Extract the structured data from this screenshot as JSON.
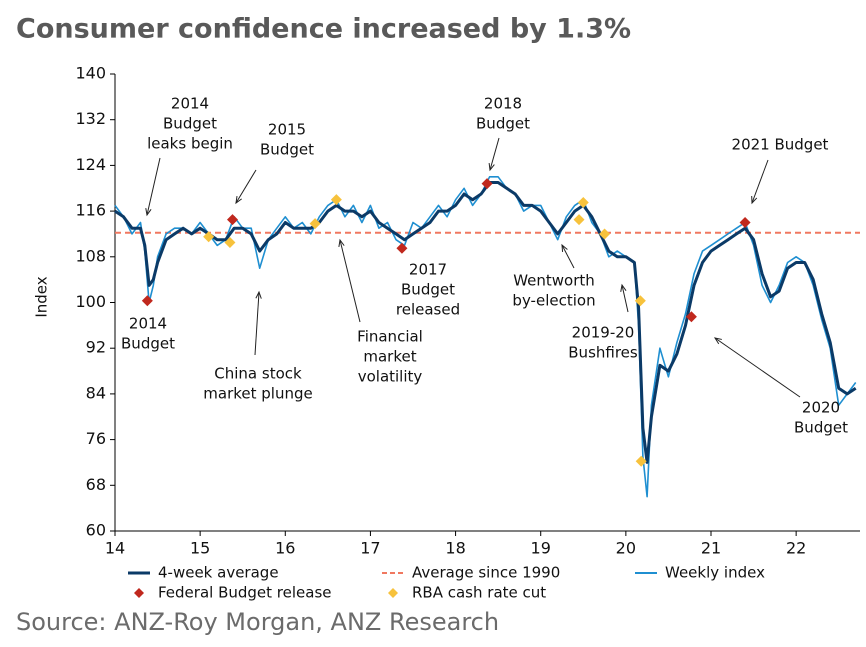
{
  "chart_data": {
    "type": "line",
    "title": "Consumer confidence increased by 1.3%",
    "source": "Source: ANZ-Roy Morgan, ANZ Research",
    "y_label": "Index",
    "xlim": [
      14,
      22.75
    ],
    "xticks": [
      14,
      15,
      16,
      17,
      18,
      19,
      20,
      21,
      22
    ],
    "ylim": [
      60,
      140
    ],
    "yticks": [
      60,
      68,
      76,
      84,
      92,
      100,
      108,
      116,
      124,
      132,
      140
    ],
    "x": [
      14.0,
      14.1,
      14.2,
      14.3,
      14.35,
      14.4,
      14.45,
      14.5,
      14.6,
      14.7,
      14.8,
      14.9,
      15.0,
      15.1,
      15.2,
      15.3,
      15.4,
      15.5,
      15.6,
      15.7,
      15.8,
      15.9,
      16.0,
      16.1,
      16.2,
      16.3,
      16.4,
      16.5,
      16.6,
      16.7,
      16.8,
      16.9,
      17.0,
      17.1,
      17.2,
      17.3,
      17.4,
      17.5,
      17.6,
      17.7,
      17.8,
      17.9,
      18.0,
      18.1,
      18.2,
      18.3,
      18.4,
      18.5,
      18.6,
      18.7,
      18.8,
      18.9,
      19.0,
      19.1,
      19.2,
      19.3,
      19.4,
      19.5,
      19.6,
      19.7,
      19.8,
      19.9,
      20.0,
      20.1,
      20.15,
      20.2,
      20.25,
      20.3,
      20.4,
      20.5,
      20.6,
      20.7,
      20.8,
      20.9,
      21.0,
      21.1,
      21.2,
      21.3,
      21.4,
      21.5,
      21.6,
      21.7,
      21.8,
      21.9,
      22.0,
      22.1,
      22.2,
      22.3,
      22.4,
      22.5,
      22.6,
      22.7
    ],
    "series": [
      {
        "name": "Weekly index",
        "color": "#1f8fd1",
        "values": [
          117,
          115,
          112,
          114,
          109,
          100,
          103,
          108,
          112,
          113,
          113,
          112,
          114,
          112,
          110,
          111,
          115,
          113,
          113,
          106,
          111,
          113,
          115,
          113,
          114,
          112,
          115,
          117,
          118,
          115,
          117,
          114,
          117,
          113,
          114,
          111,
          110,
          114,
          113,
          115,
          117,
          115,
          118,
          120,
          117,
          119,
          122,
          122,
          120,
          119,
          116,
          117,
          117,
          114,
          111,
          115,
          117,
          118,
          114,
          112,
          108,
          109,
          108,
          107,
          96,
          73,
          66,
          82,
          92,
          87,
          93,
          98,
          105,
          109,
          110,
          111,
          112,
          113,
          114,
          110,
          103,
          100,
          103,
          107,
          108,
          107,
          103,
          97,
          92,
          82,
          84,
          86
        ]
      },
      {
        "name": "4-week average",
        "color": "#0b3a67",
        "values": [
          116,
          115,
          113,
          113,
          110,
          103,
          104,
          107,
          111,
          112,
          113,
          112,
          113,
          112,
          111,
          111,
          113,
          113,
          112,
          109,
          111,
          112,
          114,
          113,
          113,
          113,
          114,
          116,
          117,
          116,
          116,
          115,
          116,
          114,
          113,
          112,
          111,
          112,
          113,
          114,
          116,
          116,
          117,
          119,
          118,
          119,
          121,
          121,
          120,
          119,
          117,
          117,
          116,
          114,
          112,
          114,
          116,
          117,
          115,
          112,
          109,
          108,
          108,
          107,
          99,
          78,
          72,
          80,
          89,
          88,
          91,
          96,
          103,
          107,
          109,
          110,
          111,
          112,
          113,
          111,
          105,
          101,
          102,
          106,
          107,
          107,
          104,
          98,
          93,
          85,
          84,
          85
        ]
      }
    ],
    "reference": {
      "name": "Average since 1990",
      "color": "#f07860",
      "value": 112.2
    },
    "markers": [
      {
        "name": "Federal Budget release",
        "color": "#c0281d",
        "x": [
          14.38,
          15.38,
          17.37,
          18.37,
          20.77,
          21.4
        ],
        "values": [
          100.3,
          114.5,
          109.5,
          120.8,
          97.5,
          114
        ]
      },
      {
        "name": "RBA cash rate cut",
        "color": "#f7c23c",
        "x": [
          15.1,
          15.35,
          16.35,
          16.6,
          19.45,
          19.5,
          19.75,
          20.17,
          20.18
        ],
        "values": [
          111.5,
          110.5,
          113.8,
          118,
          114.5,
          117.5,
          112,
          100.3,
          72.2
        ]
      }
    ],
    "annotations": [
      {
        "lines": [
          "2014",
          "Budget",
          "leaks begin"
        ]
      },
      {
        "lines": [
          "2015",
          "Budget"
        ]
      },
      {
        "lines": [
          "2014",
          "Budget"
        ]
      },
      {
        "lines": [
          "China stock",
          "market plunge"
        ]
      },
      {
        "lines": [
          "Financial",
          "market",
          "volatility"
        ]
      },
      {
        "lines": [
          "2017",
          "Budget",
          "released"
        ]
      },
      {
        "lines": [
          "2018",
          "Budget"
        ]
      },
      {
        "lines": [
          "Wentworth",
          "by-election"
        ]
      },
      {
        "lines": [
          "2019-20",
          "Bushfires"
        ]
      },
      {
        "lines": [
          "2021 Budget"
        ]
      },
      {
        "lines": [
          "2020",
          "Budget"
        ]
      }
    ]
  }
}
